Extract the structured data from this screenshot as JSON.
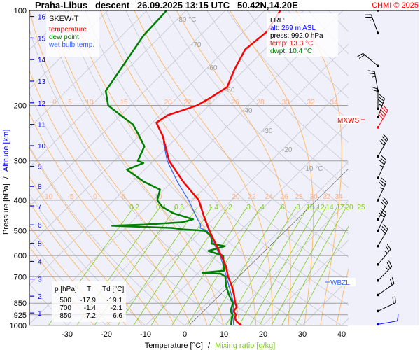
{
  "header": {
    "title": "Praha-Libus   descent   26.09.2025 13:15 UTC   50.42N,14.20E",
    "copyright": "CHMI © 2025"
  },
  "legend": {
    "title": "SKEW-T",
    "temperature": "temperature",
    "dew_point": "dew point",
    "wet_bulb": "wet bulb temp."
  },
  "lrl": {
    "title": "LRL:",
    "alt": "alt: 269 m ASL",
    "press": "press: 992.0 hPa",
    "temp": "temp: 13.3 °C",
    "dwpt": "dwpt: 10.4 °C"
  },
  "markers": {
    "wbzl": "WBZL",
    "mxws": "MXWS"
  },
  "table": {
    "headers": [
      "p [hPa]",
      "T",
      "Td [°C]"
    ],
    "rows": [
      [
        "500",
        "-17.9",
        "-19.1"
      ],
      [
        "700",
        "-1.4",
        "-2.1"
      ],
      [
        "850",
        "7.2",
        "6.6"
      ]
    ]
  },
  "colors": {
    "temperature": "#ff0000",
    "dew_point": "#008000",
    "wet_bulb": "#3366ff",
    "mixing_ratio": "#80cc20",
    "adiabat": "#ffb860",
    "altitude": "#0000ff",
    "background": "#f0f0fa"
  },
  "chart_data": {
    "type": "line",
    "subtype": "skew-T log-p",
    "xlabel": "Temperature [°C]",
    "xlabel2": "Mixing ratio [g/kg]",
    "ylabel": "Pressure [hPa]",
    "ylabel2": "Altitude [km]",
    "y_scale": "log",
    "ylim": [
      1000,
      100
    ],
    "x_ticks": [
      "-30",
      "-20",
      "-10",
      "0",
      "10",
      "20",
      "30",
      "40"
    ],
    "pressure_ticks": [
      "100",
      "200",
      "300",
      "400",
      "500",
      "600",
      "700",
      "850",
      "925",
      "1000"
    ],
    "altitude_ticks": [
      "1",
      "2",
      "3",
      "4",
      "5",
      "6",
      "7",
      "8",
      "9",
      "10",
      "11",
      "12",
      "13",
      "14",
      "15",
      "16"
    ],
    "isotherm_labels": [
      "-80 °C",
      "-70",
      "-60",
      "-50",
      "-40",
      "-30",
      "-20",
      "-10 °C"
    ],
    "adiabat_labels_200": [
      "0",
      "5",
      "10",
      "15",
      "20",
      "22",
      "24",
      "26",
      "28",
      "30",
      "32",
      "34"
    ],
    "adiabat_labels_400": [
      "-10",
      "-5",
      "0",
      "5",
      "10",
      "15",
      "20",
      "22",
      "24",
      "26",
      "28",
      "30",
      "32",
      "34"
    ],
    "mixing_ratio_labels": [
      "0.2",
      "0.4",
      "0.6",
      "1.4",
      "2",
      "3",
      "4",
      "6",
      "8",
      "10",
      "12",
      "14",
      "17",
      "20",
      "25"
    ],
    "series": [
      {
        "name": "temperature",
        "points": [
          [
            1000,
            14.5
          ],
          [
            975,
            12.5
          ],
          [
            950,
            11
          ],
          [
            925,
            10.3
          ],
          [
            900,
            8.8
          ],
          [
            875,
            8.6
          ],
          [
            850,
            7.2
          ],
          [
            800,
            4.8
          ],
          [
            750,
            2
          ],
          [
            700,
            -1.4
          ],
          [
            650,
            -4.5
          ],
          [
            600,
            -8.5
          ],
          [
            550,
            -13
          ],
          [
            500,
            -17.9
          ],
          [
            450,
            -23
          ],
          [
            400,
            -28.4
          ],
          [
            350,
            -37
          ],
          [
            300,
            -46
          ],
          [
            250,
            -54
          ],
          [
            227,
            -59
          ],
          [
            215,
            -58
          ],
          [
            200,
            -53
          ],
          [
            190,
            -51.6
          ],
          [
            175,
            -50
          ],
          [
            155,
            -52.5
          ],
          [
            133,
            -55
          ],
          [
            117,
            -54
          ],
          [
            100,
            -56
          ]
        ]
      },
      {
        "name": "dew point",
        "points": [
          [
            1000,
            11.8
          ],
          [
            975,
            11
          ],
          [
            950,
            10.2
          ],
          [
            925,
            9.5
          ],
          [
            900,
            8
          ],
          [
            850,
            6.6
          ],
          [
            800,
            3.5
          ],
          [
            750,
            0.5
          ],
          [
            700,
            -2.1
          ],
          [
            685,
            -4
          ],
          [
            680,
            -9
          ],
          [
            670,
            -4
          ],
          [
            600,
            -8
          ],
          [
            580,
            -13
          ],
          [
            560,
            -10
          ],
          [
            550,
            -14
          ],
          [
            520,
            -16
          ],
          [
            500,
            -19.1
          ],
          [
            495,
            -25
          ],
          [
            490,
            -28
          ],
          [
            482,
            -44
          ],
          [
            478,
            -36
          ],
          [
            470,
            -27
          ],
          [
            460,
            -25
          ],
          [
            440,
            -31.6
          ],
          [
            420,
            -36
          ],
          [
            400,
            -39
          ],
          [
            370,
            -41
          ],
          [
            350,
            -47
          ],
          [
            320,
            -54.5
          ],
          [
            305,
            -52
          ],
          [
            300,
            -54
          ],
          [
            270,
            -56
          ],
          [
            250,
            -60
          ],
          [
            230,
            -64.5
          ],
          [
            215,
            -70
          ],
          [
            200,
            -75.7
          ],
          [
            180,
            -80
          ],
          [
            150,
            -82
          ],
          [
            120,
            -84.5
          ],
          [
            100,
            -85
          ]
        ]
      },
      {
        "name": "wet bulb temp.",
        "points": [
          [
            1000,
            12.5
          ],
          [
            925,
            9.5
          ],
          [
            850,
            6.8
          ],
          [
            700,
            -1.8
          ],
          [
            600,
            -8.8
          ],
          [
            500,
            -18.5
          ],
          [
            490,
            -21
          ],
          [
            480,
            -21.5
          ],
          [
            450,
            -25
          ],
          [
            400,
            -31
          ],
          [
            350,
            -38.5
          ],
          [
            300,
            -46.5
          ],
          [
            260,
            -52.5
          ]
        ]
      }
    ],
    "wind": [
      {
        "p": 100,
        "dir": 225,
        "kt": 15
      },
      {
        "p": 118,
        "dir": 200,
        "kt": 25
      },
      {
        "p": 150,
        "dir": 230,
        "kt": 20
      },
      {
        "p": 180,
        "dir": 190,
        "kt": 25
      },
      {
        "p": 205,
        "dir": 180,
        "kt": 20
      },
      {
        "p": 218,
        "dir": 160,
        "kt": 35
      },
      {
        "p": 235,
        "dir": 150,
        "kt": 50
      },
      {
        "p": 290,
        "dir": 150,
        "kt": 40
      },
      {
        "p": 340,
        "dir": 155,
        "kt": 35
      },
      {
        "p": 400,
        "dir": 155,
        "kt": 35
      },
      {
        "p": 460,
        "dir": 150,
        "kt": 30
      },
      {
        "p": 500,
        "dir": 155,
        "kt": 30
      },
      {
        "p": 560,
        "dir": 150,
        "kt": 30
      },
      {
        "p": 640,
        "dir": 140,
        "kt": 25
      },
      {
        "p": 720,
        "dir": 135,
        "kt": 25
      },
      {
        "p": 800,
        "dir": 125,
        "kt": 20
      },
      {
        "p": 900,
        "dir": 115,
        "kt": 20
      },
      {
        "p": 992,
        "dir": 100,
        "kt": 10
      }
    ]
  }
}
